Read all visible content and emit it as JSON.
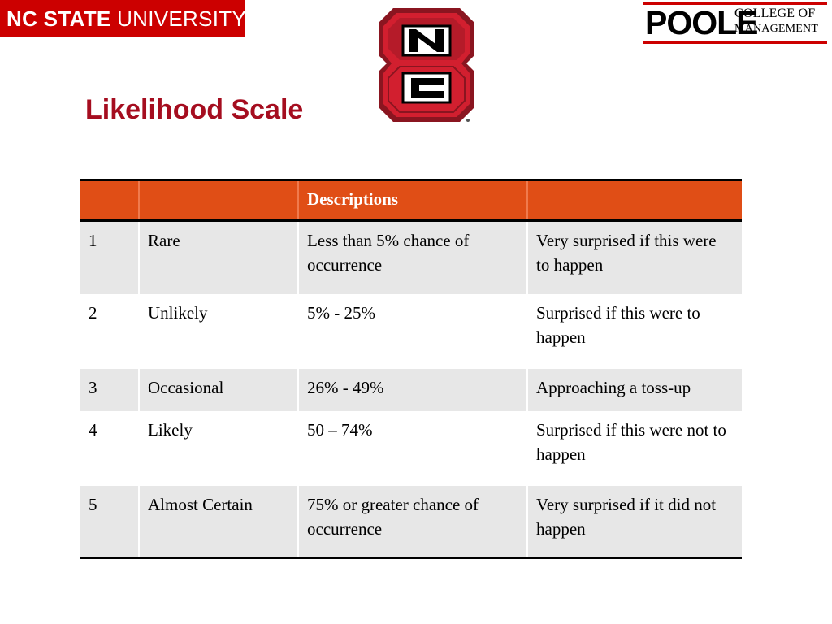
{
  "header": {
    "ncsu_logo_bold": "NC STATE",
    "ncsu_logo_rest": " UNIVERSITY",
    "poole_word": "POOLE",
    "poole_line1": "COLLEGE OF",
    "poole_line2": "MANAGEMENT"
  },
  "slide": {
    "title": "Likelihood Scale"
  },
  "table": {
    "headers": [
      "",
      "",
      "Descriptions",
      ""
    ],
    "rows": [
      [
        "1",
        "Rare",
        "Less than 5% chance of occurrence",
        "Very surprised if this were to happen"
      ],
      [
        "2",
        "Unlikely",
        "5% - 25%",
        "Surprised if this were to happen"
      ],
      [
        "3",
        "Occasional",
        "26% - 49%",
        "Approaching a toss-up"
      ],
      [
        "4",
        "Likely",
        "50 – 74%",
        "Surprised if this were not to happen"
      ],
      [
        "5",
        "Almost Certain",
        "75% or greater chance of occurrence",
        "Very surprised if it did not happen"
      ]
    ]
  },
  "colors": {
    "brand_red": "#cc0000",
    "title_red": "#a50d1f",
    "header_orange": "#e04e16",
    "row_gray": "#e7e7e7"
  }
}
